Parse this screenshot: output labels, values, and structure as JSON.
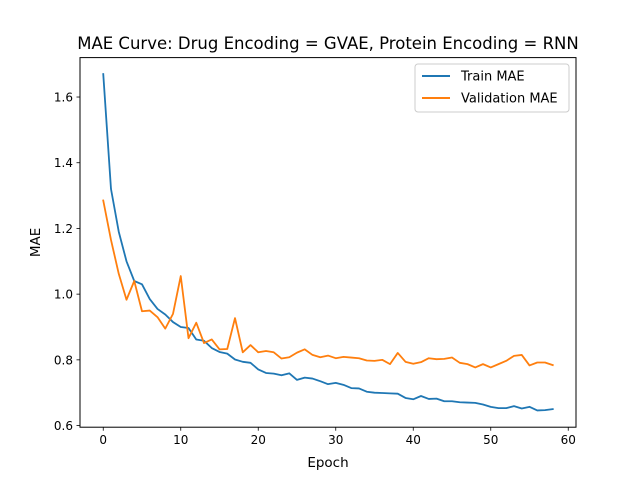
{
  "chart_data": {
    "type": "line",
    "title": "MAE Curve: Drug Encoding = GVAE, Protein Encoding = RNN",
    "xlabel": "Epoch",
    "ylabel": "MAE",
    "xlim": [
      -3,
      61
    ],
    "ylim": [
      0.595,
      1.72
    ],
    "xticks": [
      0,
      10,
      20,
      30,
      40,
      50,
      60
    ],
    "yticks": [
      0.6,
      0.8,
      1.0,
      1.2,
      1.4,
      1.6
    ],
    "legend_position": "top-right",
    "grid": false,
    "x": [
      0,
      1,
      2,
      3,
      4,
      5,
      6,
      7,
      8,
      9,
      10,
      11,
      12,
      13,
      14,
      15,
      16,
      17,
      18,
      19,
      20,
      21,
      22,
      23,
      24,
      25,
      26,
      27,
      28,
      29,
      30,
      31,
      32,
      33,
      34,
      35,
      36,
      37,
      38,
      39,
      40,
      41,
      42,
      43,
      44,
      45,
      46,
      47,
      48,
      49,
      50,
      51,
      52,
      53,
      54,
      55,
      56,
      57,
      58
    ],
    "series": [
      {
        "name": "Train MAE",
        "color": "#1f77b4",
        "values": [
          1.67,
          1.32,
          1.19,
          1.1,
          1.04,
          1.03,
          0.985,
          0.955,
          0.938,
          0.915,
          0.9,
          0.897,
          0.862,
          0.858,
          0.836,
          0.824,
          0.819,
          0.801,
          0.794,
          0.791,
          0.771,
          0.76,
          0.758,
          0.753,
          0.759,
          0.739,
          0.746,
          0.743,
          0.735,
          0.726,
          0.73,
          0.724,
          0.714,
          0.713,
          0.703,
          0.7,
          0.699,
          0.698,
          0.697,
          0.684,
          0.68,
          0.69,
          0.681,
          0.682,
          0.674,
          0.674,
          0.671,
          0.67,
          0.669,
          0.664,
          0.657,
          0.653,
          0.653,
          0.659,
          0.652,
          0.657,
          0.646,
          0.647,
          0.65
        ]
      },
      {
        "name": "Validation MAE",
        "color": "#ff7f0e",
        "values": [
          1.285,
          1.165,
          1.062,
          0.983,
          1.04,
          0.948,
          0.95,
          0.93,
          0.895,
          0.94,
          1.055,
          0.866,
          0.913,
          0.851,
          0.862,
          0.832,
          0.833,
          0.927,
          0.823,
          0.845,
          0.823,
          0.827,
          0.823,
          0.804,
          0.808,
          0.822,
          0.832,
          0.815,
          0.808,
          0.813,
          0.805,
          0.809,
          0.807,
          0.805,
          0.798,
          0.797,
          0.8,
          0.787,
          0.821,
          0.794,
          0.788,
          0.793,
          0.805,
          0.802,
          0.803,
          0.807,
          0.791,
          0.787,
          0.777,
          0.787,
          0.777,
          0.787,
          0.797,
          0.812,
          0.815,
          0.783,
          0.792,
          0.792,
          0.784
        ]
      }
    ]
  }
}
